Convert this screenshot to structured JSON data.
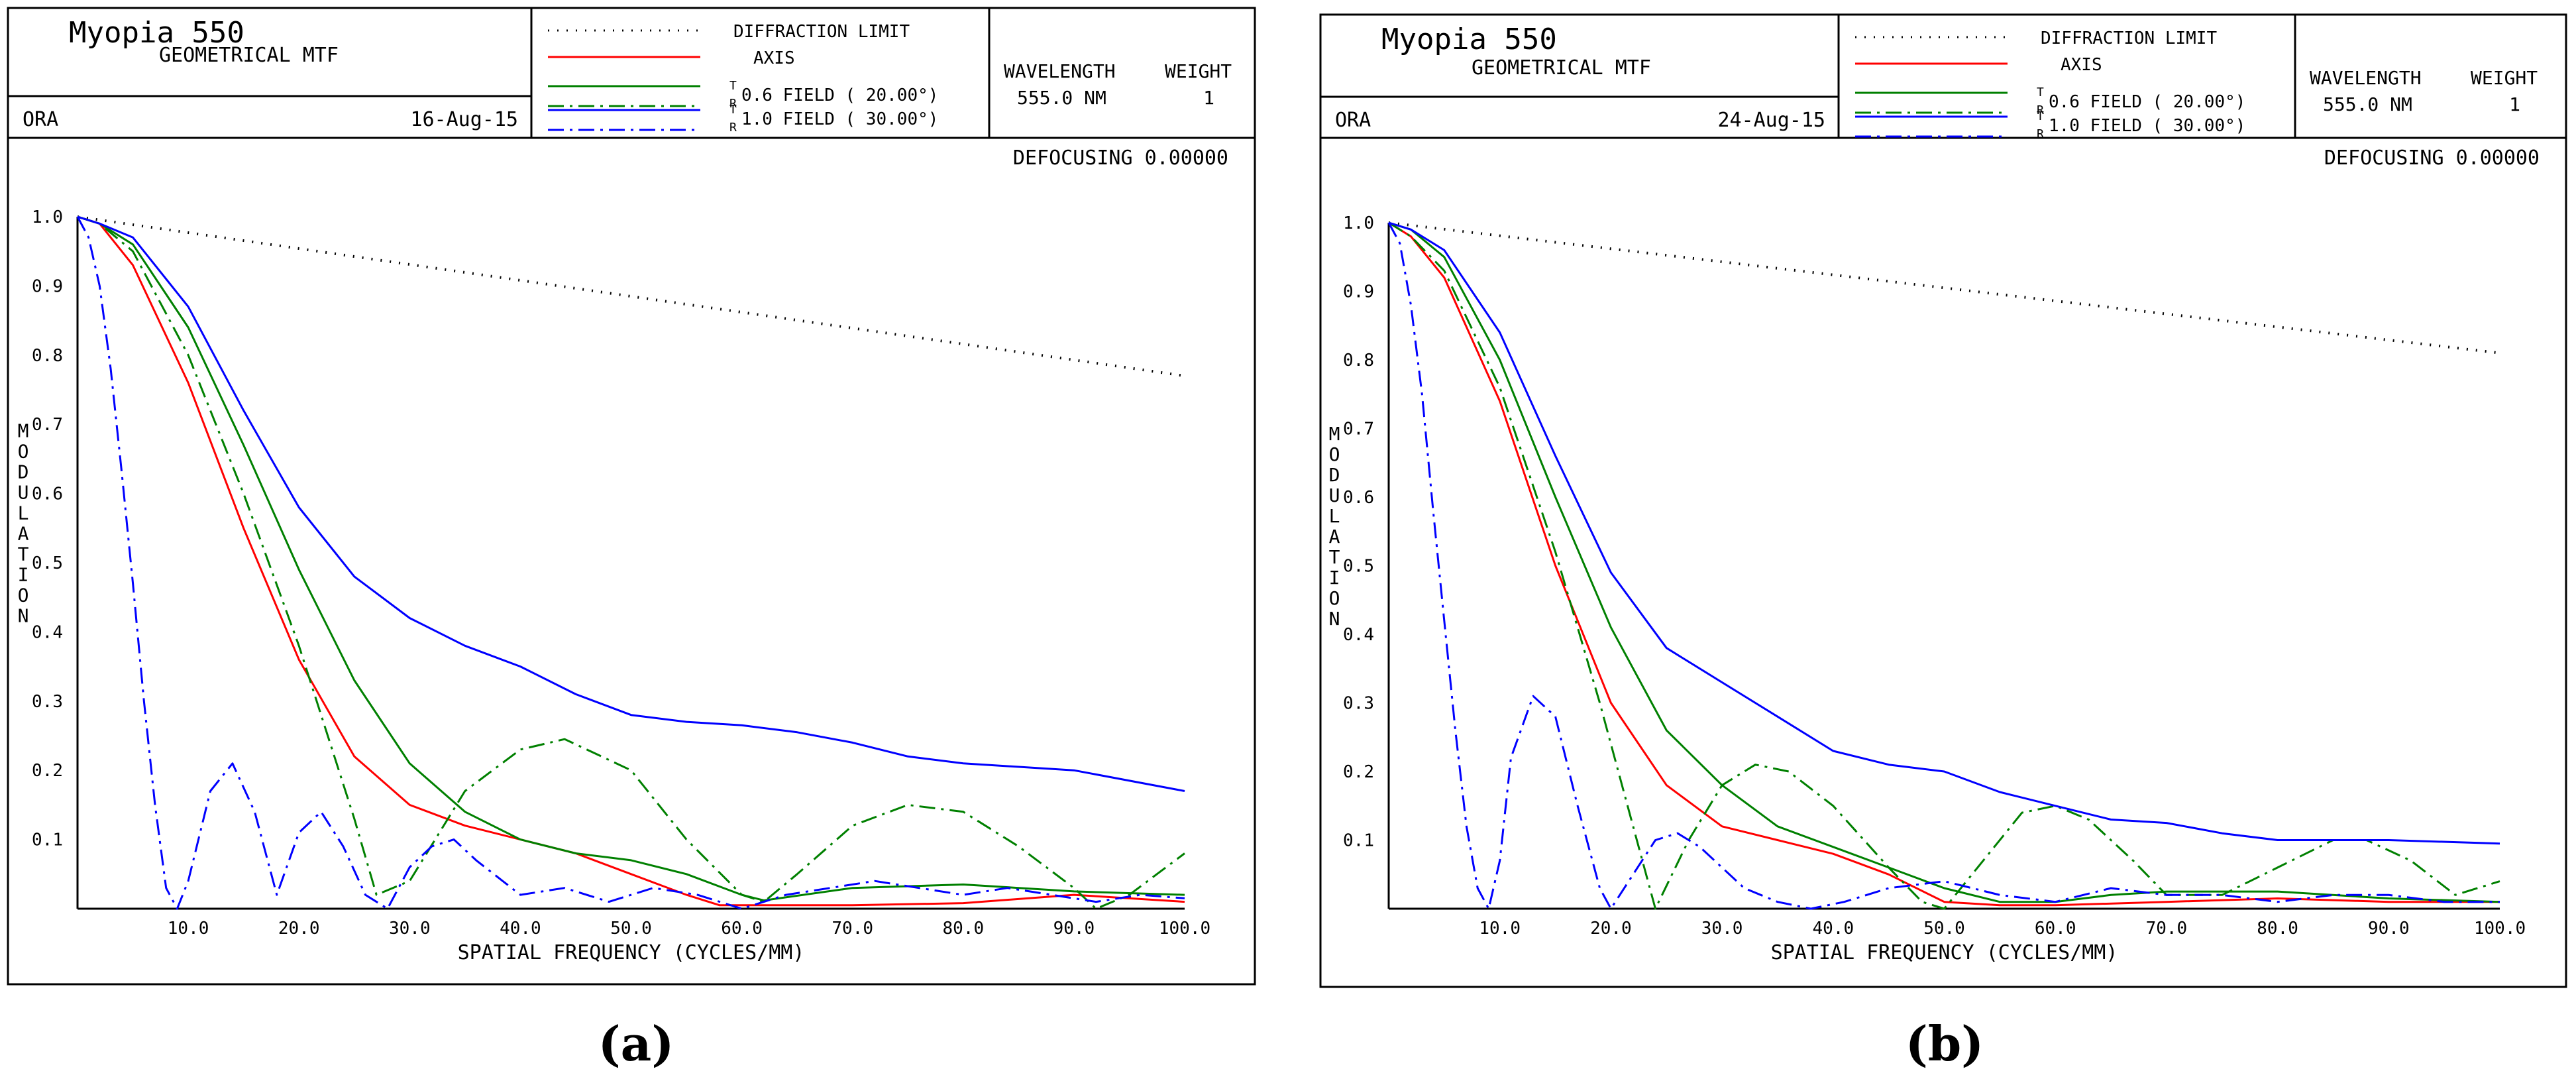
{
  "colors": {
    "red": "#ff0000",
    "green": "#008000",
    "blue": "#0000ff",
    "black": "#000000"
  },
  "panels": [
    {
      "header": {
        "title": "Myopia  550",
        "subtitle": "GEOMETRICAL MTF",
        "org": "ORA",
        "date": "16-Aug-15"
      },
      "legend": {
        "diffraction": "DIFFRACTION LIMIT",
        "axis": "AXIS",
        "field06": "0.6 FIELD ( 20.00°)",
        "field10": "1.0 FIELD ( 30.00°)",
        "t_mark": "T",
        "r_mark": "R"
      },
      "wavelength": {
        "label": "WAVELENGTH",
        "weight_label": "WEIGHT",
        "value": "555.0 NM",
        "weight": "1"
      },
      "defocusing": "DEFOCUSING  0.00000",
      "caption": "(a)",
      "chart_data": {
        "type": "line",
        "xlabel": "SPATIAL FREQUENCY (CYCLES/MM)",
        "ylabel": "MODULATION",
        "xlim": [
          0,
          100
        ],
        "ylim": [
          0,
          1.0
        ],
        "xticks": [
          "10.0",
          "20.0",
          "30.0",
          "40.0",
          "50.0",
          "60.0",
          "70.0",
          "80.0",
          "90.0",
          "100.0"
        ],
        "yticks": [
          "1.0",
          "0.9",
          "0.8",
          "0.7",
          "0.6",
          "0.5",
          "0.4",
          "0.3",
          "0.2",
          "0.1"
        ],
        "series": [
          {
            "name": "DIFFRACTION LIMIT",
            "color": "#000000",
            "style": "dotted",
            "x": [
              0,
              10,
              20,
              30,
              40,
              50,
              60,
              70,
              80,
              90,
              100
            ],
            "y": [
              1.0,
              0.977,
              0.954,
              0.931,
              0.908,
              0.885,
              0.862,
              0.839,
              0.816,
              0.793,
              0.77
            ]
          },
          {
            "name": "AXIS",
            "color": "#ff0000",
            "style": "solid",
            "x": [
              0,
              2,
              5,
              10,
              15,
              20,
              25,
              30,
              35,
              40,
              45,
              50,
              55,
              58,
              65,
              70,
              80,
              90,
              100
            ],
            "y": [
              1.0,
              0.99,
              0.93,
              0.76,
              0.55,
              0.36,
              0.22,
              0.15,
              0.12,
              0.1,
              0.08,
              0.05,
              0.02,
              0.005,
              0.005,
              0.005,
              0.008,
              0.02,
              0.01
            ]
          },
          {
            "name": "0.6 FIELD T",
            "color": "#008000",
            "style": "solid",
            "x": [
              0,
              2,
              5,
              10,
              15,
              20,
              25,
              30,
              35,
              40,
              45,
              50,
              55,
              60,
              62,
              70,
              80,
              90,
              100
            ],
            "y": [
              1.0,
              0.99,
              0.96,
              0.84,
              0.67,
              0.49,
              0.33,
              0.21,
              0.14,
              0.1,
              0.08,
              0.07,
              0.05,
              0.02,
              0.012,
              0.03,
              0.035,
              0.025,
              0.02
            ]
          },
          {
            "name": "0.6 FIELD R",
            "color": "#008000",
            "style": "dashdot",
            "x": [
              0,
              2,
              5,
              10,
              15,
              20,
              25,
              27,
              30,
              35,
              40,
              44,
              50,
              55,
              60,
              62,
              65,
              70,
              75,
              80,
              85,
              90,
              92,
              95,
              100
            ],
            "y": [
              1.0,
              0.99,
              0.95,
              0.8,
              0.6,
              0.38,
              0.13,
              0.02,
              0.04,
              0.17,
              0.23,
              0.245,
              0.2,
              0.1,
              0.02,
              0.01,
              0.05,
              0.12,
              0.15,
              0.14,
              0.09,
              0.03,
              0.0,
              0.02,
              0.08
            ]
          },
          {
            "name": "1.0 FIELD T",
            "color": "#0000ff",
            "style": "solid",
            "x": [
              0,
              2,
              5,
              10,
              15,
              20,
              25,
              30,
              35,
              40,
              45,
              50,
              55,
              60,
              65,
              70,
              75,
              80,
              90,
              100
            ],
            "y": [
              1.0,
              0.99,
              0.97,
              0.87,
              0.72,
              0.58,
              0.48,
              0.42,
              0.38,
              0.35,
              0.31,
              0.28,
              0.27,
              0.265,
              0.255,
              0.24,
              0.22,
              0.21,
              0.2,
              0.17
            ]
          },
          {
            "name": "1.0 FIELD R",
            "color": "#0000ff",
            "style": "dashdot",
            "x": [
              0,
              1,
              2,
              3,
              4,
              5,
              6,
              7,
              8,
              9,
              10,
              12,
              14,
              16,
              18,
              20,
              22,
              24,
              26,
              28,
              30,
              32,
              34,
              36,
              40,
              44,
              48,
              52,
              56,
              60,
              64,
              68,
              72,
              76,
              80,
              84,
              88,
              92,
              96,
              100
            ],
            "y": [
              1.0,
              0.97,
              0.9,
              0.78,
              0.63,
              0.47,
              0.3,
              0.15,
              0.03,
              0.0,
              0.04,
              0.17,
              0.21,
              0.14,
              0.02,
              0.11,
              0.14,
              0.09,
              0.02,
              0.0,
              0.06,
              0.09,
              0.1,
              0.07,
              0.02,
              0.03,
              0.01,
              0.03,
              0.02,
              0.0,
              0.02,
              0.03,
              0.04,
              0.03,
              0.02,
              0.03,
              0.02,
              0.01,
              0.02,
              0.015
            ]
          }
        ]
      }
    },
    {
      "header": {
        "title": "Myopia  550",
        "subtitle": "GEOMETRICAL MTF",
        "org": "ORA",
        "date": "24-Aug-15"
      },
      "legend": {
        "diffraction": "DIFFRACTION LIMIT",
        "axis": "AXIS",
        "field06": "0.6 FIELD ( 20.00°)",
        "field10": "1.0 FIELD ( 30.00°)",
        "t_mark": "T",
        "r_mark": "R"
      },
      "wavelength": {
        "label": "WAVELENGTH",
        "weight_label": "WEIGHT",
        "value": "555.0 NM",
        "weight": "1"
      },
      "defocusing": "DEFOCUSING  0.00000",
      "caption": "(b)",
      "chart_data": {
        "type": "line",
        "xlabel": "SPATIAL FREQUENCY (CYCLES/MM)",
        "ylabel": "MODULATION",
        "xlim": [
          0,
          100
        ],
        "ylim": [
          0,
          1.0
        ],
        "xticks": [
          "10.0",
          "20.0",
          "30.0",
          "40.0",
          "50.0",
          "60.0",
          "70.0",
          "80.0",
          "90.0",
          "100.0"
        ],
        "yticks": [
          "1.0",
          "0.9",
          "0.8",
          "0.7",
          "0.6",
          "0.5",
          "0.4",
          "0.3",
          "0.2",
          "0.1"
        ],
        "series": [
          {
            "name": "DIFFRACTION LIMIT",
            "color": "#000000",
            "style": "dotted",
            "x": [
              0,
              10,
              20,
              30,
              40,
              50,
              60,
              70,
              80,
              90,
              100
            ],
            "y": [
              1.0,
              0.981,
              0.962,
              0.943,
              0.924,
              0.905,
              0.886,
              0.867,
              0.848,
              0.829,
              0.81
            ]
          },
          {
            "name": "AXIS",
            "color": "#ff0000",
            "style": "solid",
            "x": [
              0,
              2,
              5,
              10,
              15,
              20,
              25,
              30,
              35,
              40,
              45,
              50,
              55,
              60,
              70,
              80,
              90,
              100
            ],
            "y": [
              1.0,
              0.98,
              0.92,
              0.74,
              0.5,
              0.3,
              0.18,
              0.12,
              0.1,
              0.08,
              0.05,
              0.01,
              0.005,
              0.005,
              0.01,
              0.015,
              0.01,
              0.01
            ]
          },
          {
            "name": "0.6 FIELD T",
            "color": "#008000",
            "style": "solid",
            "x": [
              0,
              2,
              5,
              10,
              15,
              20,
              25,
              30,
              35,
              40,
              45,
              50,
              55,
              60,
              65,
              70,
              80,
              90,
              100
            ],
            "y": [
              1.0,
              0.99,
              0.95,
              0.8,
              0.6,
              0.41,
              0.26,
              0.18,
              0.12,
              0.09,
              0.06,
              0.03,
              0.01,
              0.01,
              0.02,
              0.025,
              0.025,
              0.015,
              0.01
            ]
          },
          {
            "name": "0.6 FIELD R",
            "color": "#008000",
            "style": "dashdot",
            "x": [
              0,
              2,
              5,
              10,
              15,
              19,
              22,
              24,
              27,
              30,
              33,
              36,
              40,
              45,
              48,
              50,
              53,
              57,
              60,
              63,
              67,
              70,
              75,
              80,
              85,
              88,
              92,
              96,
              100
            ],
            "y": [
              1.0,
              0.98,
              0.93,
              0.76,
              0.52,
              0.3,
              0.12,
              0.0,
              0.1,
              0.18,
              0.21,
              0.2,
              0.15,
              0.06,
              0.01,
              0.0,
              0.06,
              0.14,
              0.15,
              0.13,
              0.07,
              0.02,
              0.02,
              0.06,
              0.1,
              0.1,
              0.07,
              0.02,
              0.04
            ]
          },
          {
            "name": "1.0 FIELD T",
            "color": "#0000ff",
            "style": "solid",
            "x": [
              0,
              2,
              5,
              10,
              15,
              20,
              25,
              30,
              35,
              40,
              45,
              50,
              55,
              60,
              65,
              70,
              75,
              80,
              90,
              100
            ],
            "y": [
              1.0,
              0.99,
              0.96,
              0.84,
              0.66,
              0.49,
              0.38,
              0.33,
              0.28,
              0.23,
              0.21,
              0.2,
              0.17,
              0.15,
              0.13,
              0.125,
              0.11,
              0.1,
              0.1,
              0.095
            ]
          },
          {
            "name": "1.0 FIELD R",
            "color": "#0000ff",
            "style": "dashdot",
            "x": [
              0,
              1,
              2,
              3,
              4,
              5,
              6,
              7,
              8,
              9,
              10,
              11,
              13,
              15,
              17,
              19,
              20,
              22,
              24,
              26,
              28,
              30,
              32,
              35,
              38,
              41,
              45,
              50,
              55,
              60,
              65,
              70,
              75,
              80,
              85,
              90,
              95,
              100
            ],
            "y": [
              1.0,
              0.97,
              0.88,
              0.75,
              0.58,
              0.42,
              0.26,
              0.12,
              0.03,
              0.0,
              0.07,
              0.22,
              0.31,
              0.28,
              0.15,
              0.03,
              0.0,
              0.05,
              0.1,
              0.11,
              0.09,
              0.06,
              0.03,
              0.01,
              0.0,
              0.01,
              0.03,
              0.04,
              0.02,
              0.01,
              0.03,
              0.02,
              0.02,
              0.01,
              0.02,
              0.02,
              0.01,
              0.01
            ]
          }
        ]
      }
    }
  ]
}
